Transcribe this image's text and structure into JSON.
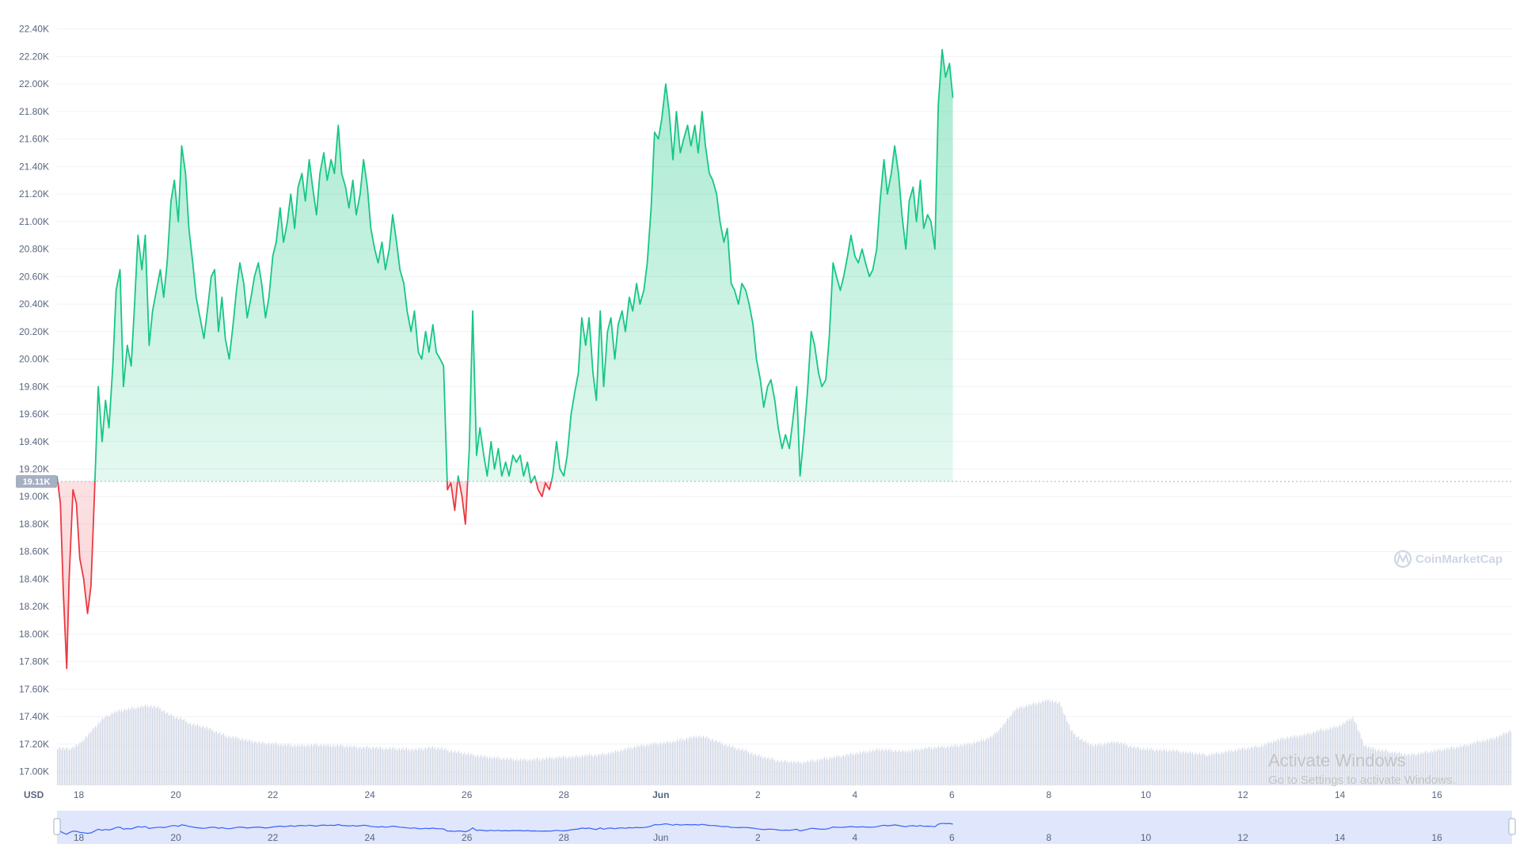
{
  "chart_data": {
    "type": "area",
    "currency_label": "USD",
    "ylim": [
      16900,
      22450
    ],
    "y_ticks": [
      "17.00K",
      "17.20K",
      "17.40K",
      "17.60K",
      "17.80K",
      "18.00K",
      "18.20K",
      "18.40K",
      "18.60K",
      "18.80K",
      "19.00K",
      "19.20K",
      "19.40K",
      "19.60K",
      "19.80K",
      "20.00K",
      "20.20K",
      "20.40K",
      "20.60K",
      "20.80K",
      "21.00K",
      "21.20K",
      "21.40K",
      "21.60K",
      "21.80K",
      "22.00K",
      "22.20K",
      "22.40K"
    ],
    "y_tick_values": [
      17000,
      17200,
      17400,
      17600,
      17800,
      18000,
      18200,
      18400,
      18600,
      18800,
      19000,
      19200,
      19400,
      19600,
      19800,
      20000,
      20200,
      20400,
      20600,
      20800,
      21000,
      21200,
      21400,
      21600,
      21800,
      22000,
      22200,
      22400
    ],
    "x_ticks": [
      {
        "label": "18",
        "day": 1.2
      },
      {
        "label": "20",
        "day": 3.2
      },
      {
        "label": "22",
        "day": 5.2
      },
      {
        "label": "24",
        "day": 7.2
      },
      {
        "label": "26",
        "day": 9.2
      },
      {
        "label": "28",
        "day": 11.2
      },
      {
        "label": "Jun",
        "day": 13.2,
        "bold": true
      },
      {
        "label": "2",
        "day": 15.2
      },
      {
        "label": "4",
        "day": 17.2
      },
      {
        "label": "6",
        "day": 19.2
      },
      {
        "label": "8",
        "day": 21.2
      },
      {
        "label": "10",
        "day": 23.2
      },
      {
        "label": "12",
        "day": 25.2
      },
      {
        "label": "14",
        "day": 27.2
      },
      {
        "label": "16",
        "day": 29.2
      }
    ],
    "x_range_days": [
      0.75,
      30.75
    ],
    "baseline": {
      "value": 19110,
      "label": "19.11K"
    },
    "colors": {
      "up": "#16c784",
      "down": "#ea3943",
      "volume": "#cfd6e4",
      "navigator_line": "#3861fb",
      "navigator_fill": "#e0e6fb"
    },
    "series": [
      {
        "values": [
          [
            0.75,
            19150
          ],
          [
            0.82,
            18950
          ],
          [
            0.88,
            18300
          ],
          [
            0.95,
            17750
          ],
          [
            1.0,
            18400
          ],
          [
            1.08,
            19050
          ],
          [
            1.15,
            18950
          ],
          [
            1.22,
            18550
          ],
          [
            1.3,
            18400
          ],
          [
            1.38,
            18150
          ],
          [
            1.45,
            18350
          ],
          [
            1.52,
            19000
          ],
          [
            1.6,
            19800
          ],
          [
            1.68,
            19400
          ],
          [
            1.75,
            19700
          ],
          [
            1.82,
            19500
          ],
          [
            1.9,
            19950
          ],
          [
            1.97,
            20500
          ],
          [
            2.05,
            20650
          ],
          [
            2.12,
            19800
          ],
          [
            2.2,
            20100
          ],
          [
            2.28,
            19950
          ],
          [
            2.35,
            20400
          ],
          [
            2.42,
            20900
          ],
          [
            2.5,
            20650
          ],
          [
            2.57,
            20900
          ],
          [
            2.65,
            20100
          ],
          [
            2.72,
            20350
          ],
          [
            2.8,
            20500
          ],
          [
            2.88,
            20650
          ],
          [
            2.95,
            20450
          ],
          [
            3.02,
            20700
          ],
          [
            3.1,
            21150
          ],
          [
            3.17,
            21300
          ],
          [
            3.25,
            21000
          ],
          [
            3.32,
            21550
          ],
          [
            3.4,
            21350
          ],
          [
            3.47,
            20950
          ],
          [
            3.55,
            20700
          ],
          [
            3.62,
            20450
          ],
          [
            3.7,
            20300
          ],
          [
            3.78,
            20150
          ],
          [
            3.85,
            20350
          ],
          [
            3.93,
            20600
          ],
          [
            4.0,
            20650
          ],
          [
            4.08,
            20200
          ],
          [
            4.15,
            20450
          ],
          [
            4.22,
            20150
          ],
          [
            4.3,
            20000
          ],
          [
            4.38,
            20250
          ],
          [
            4.45,
            20500
          ],
          [
            4.52,
            20700
          ],
          [
            4.6,
            20550
          ],
          [
            4.67,
            20300
          ],
          [
            4.75,
            20450
          ],
          [
            4.82,
            20600
          ],
          [
            4.9,
            20700
          ],
          [
            4.97,
            20550
          ],
          [
            5.05,
            20300
          ],
          [
            5.12,
            20450
          ],
          [
            5.2,
            20750
          ],
          [
            5.27,
            20850
          ],
          [
            5.35,
            21100
          ],
          [
            5.42,
            20850
          ],
          [
            5.5,
            21000
          ],
          [
            5.57,
            21200
          ],
          [
            5.65,
            20950
          ],
          [
            5.72,
            21250
          ],
          [
            5.8,
            21350
          ],
          [
            5.87,
            21150
          ],
          [
            5.95,
            21450
          ],
          [
            6.02,
            21250
          ],
          [
            6.1,
            21050
          ],
          [
            6.17,
            21350
          ],
          [
            6.25,
            21500
          ],
          [
            6.32,
            21300
          ],
          [
            6.4,
            21450
          ],
          [
            6.47,
            21350
          ],
          [
            6.55,
            21700
          ],
          [
            6.62,
            21350
          ],
          [
            6.7,
            21250
          ],
          [
            6.77,
            21100
          ],
          [
            6.85,
            21300
          ],
          [
            6.92,
            21050
          ],
          [
            7.0,
            21200
          ],
          [
            7.07,
            21450
          ],
          [
            7.15,
            21250
          ],
          [
            7.22,
            20950
          ],
          [
            7.3,
            20800
          ],
          [
            7.37,
            20700
          ],
          [
            7.45,
            20850
          ],
          [
            7.52,
            20650
          ],
          [
            7.6,
            20800
          ],
          [
            7.67,
            21050
          ],
          [
            7.75,
            20850
          ],
          [
            7.82,
            20650
          ],
          [
            7.9,
            20550
          ],
          [
            7.97,
            20350
          ],
          [
            8.05,
            20200
          ],
          [
            8.12,
            20350
          ],
          [
            8.2,
            20050
          ],
          [
            8.27,
            20000
          ],
          [
            8.35,
            20200
          ],
          [
            8.42,
            20050
          ],
          [
            8.5,
            20250
          ],
          [
            8.57,
            20050
          ],
          [
            8.65,
            20000
          ],
          [
            8.72,
            19950
          ],
          [
            8.8,
            19050
          ],
          [
            8.87,
            19100
          ],
          [
            8.95,
            18900
          ],
          [
            9.02,
            19150
          ],
          [
            9.1,
            19000
          ],
          [
            9.17,
            18800
          ],
          [
            9.25,
            19350
          ],
          [
            9.32,
            20350
          ],
          [
            9.4,
            19300
          ],
          [
            9.47,
            19500
          ],
          [
            9.55,
            19300
          ],
          [
            9.62,
            19150
          ],
          [
            9.7,
            19400
          ],
          [
            9.77,
            19200
          ],
          [
            9.85,
            19350
          ],
          [
            9.92,
            19150
          ],
          [
            10.0,
            19250
          ],
          [
            10.07,
            19150
          ],
          [
            10.15,
            19300
          ],
          [
            10.22,
            19250
          ],
          [
            10.3,
            19300
          ],
          [
            10.37,
            19150
          ],
          [
            10.45,
            19250
          ],
          [
            10.52,
            19100
          ],
          [
            10.6,
            19150
          ],
          [
            10.67,
            19050
          ],
          [
            10.75,
            19000
          ],
          [
            10.82,
            19100
          ],
          [
            10.9,
            19050
          ],
          [
            10.97,
            19150
          ],
          [
            11.05,
            19400
          ],
          [
            11.12,
            19200
          ],
          [
            11.2,
            19150
          ],
          [
            11.27,
            19300
          ],
          [
            11.35,
            19600
          ],
          [
            11.42,
            19750
          ],
          [
            11.5,
            19900
          ],
          [
            11.57,
            20300
          ],
          [
            11.65,
            20100
          ],
          [
            11.72,
            20300
          ],
          [
            11.8,
            19900
          ],
          [
            11.87,
            19700
          ],
          [
            11.95,
            20350
          ],
          [
            12.02,
            19800
          ],
          [
            12.1,
            20200
          ],
          [
            12.17,
            20300
          ],
          [
            12.25,
            20000
          ],
          [
            12.32,
            20250
          ],
          [
            12.4,
            20350
          ],
          [
            12.47,
            20200
          ],
          [
            12.55,
            20450
          ],
          [
            12.62,
            20350
          ],
          [
            12.7,
            20550
          ],
          [
            12.77,
            20400
          ],
          [
            12.85,
            20500
          ],
          [
            12.92,
            20700
          ],
          [
            13.0,
            21100
          ],
          [
            13.07,
            21650
          ],
          [
            13.15,
            21600
          ],
          [
            13.22,
            21750
          ],
          [
            13.3,
            22000
          ],
          [
            13.37,
            21800
          ],
          [
            13.45,
            21450
          ],
          [
            13.52,
            21800
          ],
          [
            13.6,
            21500
          ],
          [
            13.67,
            21600
          ],
          [
            13.75,
            21700
          ],
          [
            13.82,
            21550
          ],
          [
            13.9,
            21700
          ],
          [
            13.97,
            21500
          ],
          [
            14.05,
            21800
          ],
          [
            14.12,
            21550
          ],
          [
            14.2,
            21350
          ],
          [
            14.27,
            21300
          ],
          [
            14.35,
            21200
          ],
          [
            14.42,
            21000
          ],
          [
            14.5,
            20850
          ],
          [
            14.57,
            20950
          ],
          [
            14.65,
            20550
          ],
          [
            14.72,
            20500
          ],
          [
            14.8,
            20400
          ],
          [
            14.87,
            20550
          ],
          [
            14.95,
            20500
          ],
          [
            15.02,
            20400
          ],
          [
            15.1,
            20250
          ],
          [
            15.17,
            20000
          ],
          [
            15.25,
            19850
          ],
          [
            15.32,
            19650
          ],
          [
            15.4,
            19800
          ],
          [
            15.47,
            19850
          ],
          [
            15.55,
            19700
          ],
          [
            15.62,
            19500
          ],
          [
            15.7,
            19350
          ],
          [
            15.77,
            19450
          ],
          [
            15.85,
            19350
          ],
          [
            15.92,
            19550
          ],
          [
            16.0,
            19800
          ],
          [
            16.07,
            19150
          ],
          [
            16.15,
            19450
          ],
          [
            16.22,
            19750
          ],
          [
            16.3,
            20200
          ],
          [
            16.37,
            20100
          ],
          [
            16.45,
            19900
          ],
          [
            16.52,
            19800
          ],
          [
            16.6,
            19850
          ],
          [
            16.67,
            20150
          ],
          [
            16.75,
            20700
          ],
          [
            16.82,
            20600
          ],
          [
            16.9,
            20500
          ],
          [
            16.97,
            20600
          ],
          [
            17.05,
            20750
          ],
          [
            17.12,
            20900
          ],
          [
            17.2,
            20750
          ],
          [
            17.27,
            20700
          ],
          [
            17.35,
            20800
          ],
          [
            17.42,
            20700
          ],
          [
            17.5,
            20600
          ],
          [
            17.57,
            20650
          ],
          [
            17.65,
            20800
          ],
          [
            17.72,
            21150
          ],
          [
            17.8,
            21450
          ],
          [
            17.87,
            21200
          ],
          [
            17.95,
            21350
          ],
          [
            18.02,
            21550
          ],
          [
            18.1,
            21350
          ],
          [
            18.17,
            21050
          ],
          [
            18.25,
            20800
          ],
          [
            18.32,
            21150
          ],
          [
            18.4,
            21250
          ],
          [
            18.47,
            21000
          ],
          [
            18.55,
            21300
          ],
          [
            18.62,
            20950
          ],
          [
            18.7,
            21050
          ],
          [
            18.77,
            21000
          ],
          [
            18.85,
            20800
          ],
          [
            18.92,
            21850
          ],
          [
            19.0,
            22250
          ],
          [
            19.07,
            22050
          ],
          [
            19.15,
            22150
          ],
          [
            19.22,
            21900
          ]
        ]
      }
    ],
    "volume_rel": [
      0.38,
      0.36,
      0.42,
      0.55,
      0.68,
      0.75,
      0.78,
      0.8,
      0.82,
      0.8,
      0.72,
      0.68,
      0.62,
      0.6,
      0.55,
      0.5,
      0.48,
      0.45,
      0.43,
      0.42,
      0.41,
      0.4,
      0.4,
      0.41,
      0.4,
      0.4,
      0.39,
      0.38,
      0.38,
      0.37,
      0.37,
      0.36,
      0.36,
      0.38,
      0.37,
      0.34,
      0.32,
      0.3,
      0.28,
      0.27,
      0.26,
      0.25,
      0.25,
      0.26,
      0.27,
      0.28,
      0.28,
      0.3,
      0.3,
      0.32,
      0.35,
      0.38,
      0.4,
      0.42,
      0.43,
      0.45,
      0.48,
      0.5,
      0.47,
      0.42,
      0.38,
      0.35,
      0.3,
      0.27,
      0.24,
      0.23,
      0.22,
      0.24,
      0.26,
      0.28,
      0.3,
      0.32,
      0.34,
      0.36,
      0.35,
      0.34,
      0.35,
      0.37,
      0.38,
      0.39,
      0.4,
      0.42,
      0.45,
      0.5,
      0.62,
      0.78,
      0.82,
      0.85,
      0.88,
      0.84,
      0.55,
      0.45,
      0.4,
      0.42,
      0.44,
      0.4,
      0.37,
      0.36,
      0.35,
      0.35,
      0.33,
      0.32,
      0.3,
      0.32,
      0.34,
      0.36,
      0.38,
      0.4,
      0.45,
      0.48,
      0.5,
      0.52,
      0.56,
      0.58,
      0.62,
      0.7,
      0.4,
      0.36,
      0.34,
      0.32,
      0.3,
      0.32,
      0.34,
      0.36,
      0.38,
      0.4,
      0.44,
      0.46,
      0.5,
      0.56
    ]
  },
  "watermark": {
    "brand": "CoinMarketCap"
  },
  "os_overlay": {
    "title": "Activate Windows",
    "subtitle": "Go to Settings to activate Windows."
  }
}
